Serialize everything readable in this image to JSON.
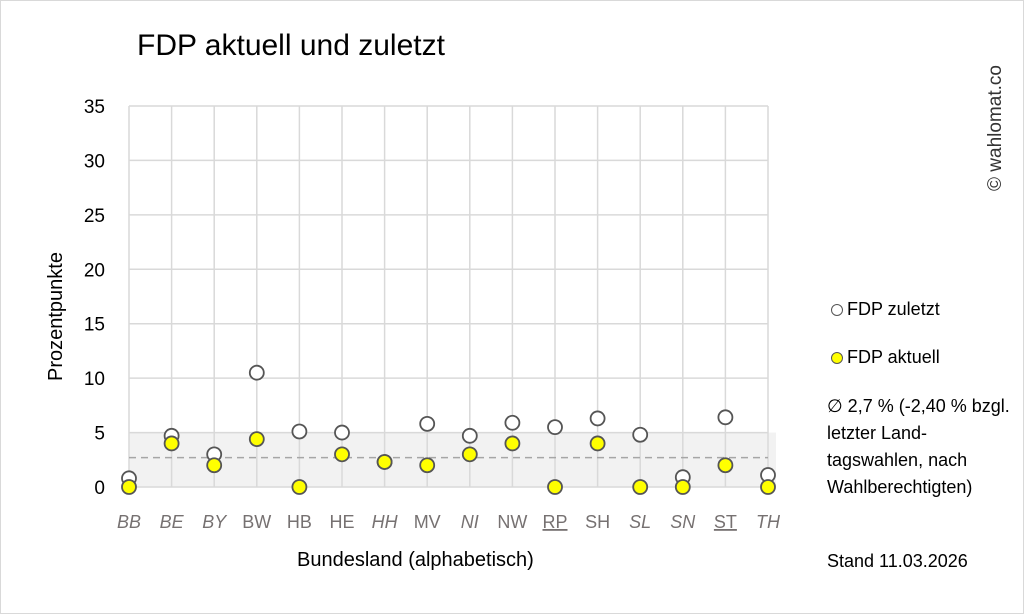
{
  "chart_data": {
    "type": "scatter",
    "title": "FDP aktuell und zuletzt",
    "xlabel": "Bundesland (alphabetisch)",
    "ylabel": "Prozentpunkte",
    "ylim": [
      0,
      35
    ],
    "yticks": [
      0,
      5,
      10,
      15,
      20,
      25,
      30,
      35
    ],
    "grid": true,
    "legend_position": "right",
    "categories": [
      "BB",
      "BE",
      "BY",
      "BW",
      "HB",
      "HE",
      "HH",
      "MV",
      "NI",
      "NW",
      "RP",
      "SH",
      "SL",
      "SN",
      "ST",
      "TH"
    ],
    "category_style": {
      "italic": [
        "BB",
        "BE",
        "BY",
        "HH",
        "NI",
        "SL",
        "SN",
        "TH"
      ],
      "underlined": [
        "RP",
        "ST"
      ]
    },
    "series": [
      {
        "name": "FDP zuletzt",
        "color": "#ffffff",
        "values": [
          0.8,
          4.7,
          3.0,
          10.5,
          5.1,
          5.0,
          2.3,
          5.8,
          4.7,
          5.9,
          5.5,
          6.3,
          4.8,
          0.9,
          6.4,
          1.1
        ]
      },
      {
        "name": "FDP aktuell",
        "color": "#ffff00",
        "values": [
          0,
          4.0,
          2.0,
          4.4,
          0,
          3.0,
          2.3,
          2.0,
          3.0,
          4.0,
          0,
          4.0,
          0,
          0,
          2.0,
          0
        ]
      }
    ],
    "mean_line": 2.7,
    "shaded_band": [
      0,
      5
    ],
    "shaded_band_color": "#f2f2f2"
  },
  "copyright": "© wahlomat.co",
  "note": "∅ 2,7 % (-2,40 % bzgl. letzter Land-tagswahlen, nach Wahlberechtigten)",
  "stand": "Stand 11.03.2026"
}
